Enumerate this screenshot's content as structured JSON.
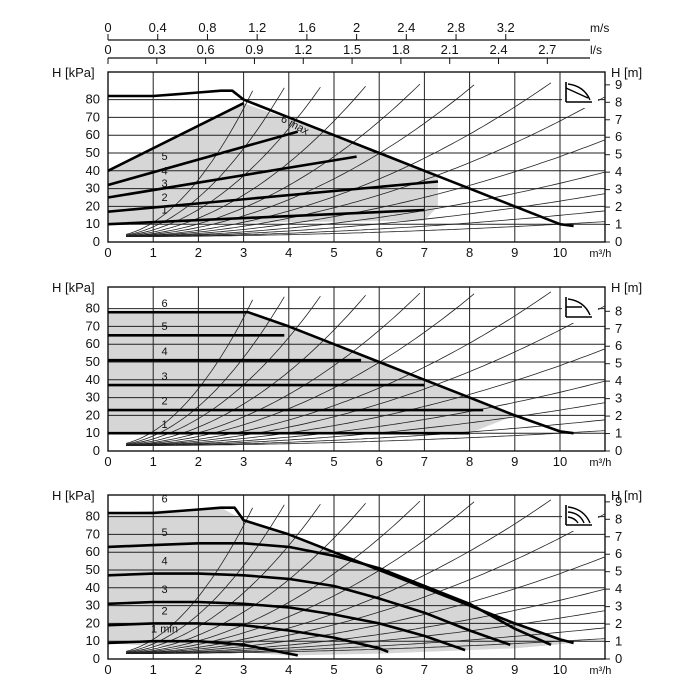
{
  "chart_data": [
    {
      "type": "line",
      "panel": "top",
      "control_icon": "proportional-pressure-icon",
      "xlabel": "m³/h",
      "ylabel_left": "H [kPa]",
      "ylabel_right": "H [m]",
      "xlim": [
        0,
        11
      ],
      "ylim": [
        0,
        90
      ],
      "x_ticks": [
        "0",
        "1",
        "2",
        "3",
        "4",
        "5",
        "6",
        "7",
        "8",
        "9",
        "10"
      ],
      "y_ticks_left": [
        "0",
        "10",
        "20",
        "30",
        "40",
        "50",
        "60",
        "70",
        "80"
      ],
      "y_ticks_right": [
        "0",
        "1",
        "2",
        "3",
        "4",
        "5",
        "6",
        "7",
        "8",
        "9"
      ],
      "grid": true,
      "shaded_operating_area": true,
      "secondary_axes": [
        {
          "unit": "m/s",
          "ticks": [
            "0",
            "0.4",
            "0.8",
            "1.2",
            "1.6",
            "2",
            "2.4",
            "2.8",
            "3.2"
          ],
          "x_at_tick": [
            0,
            1.1,
            2.2,
            3.3,
            4.4,
            5.5,
            6.6,
            7.7,
            8.8
          ]
        },
        {
          "unit": "l/s",
          "ticks": [
            "0",
            "0.3",
            "0.6",
            "0.9",
            "1.2",
            "1.5",
            "1.8",
            "2.1",
            "2.4",
            "2.7"
          ],
          "x_at_tick": [
            0,
            1.08,
            2.16,
            3.24,
            4.32,
            5.4,
            6.48,
            7.56,
            8.64,
            9.72
          ]
        }
      ],
      "series": [
        {
          "name": "6 max",
          "x": [
            0,
            1,
            1.5,
            2,
            2.5,
            2.75,
            3,
            3.5,
            4,
            5,
            6,
            7,
            8,
            9,
            10,
            10.3
          ],
          "y": [
            82,
            82,
            83,
            84,
            85,
            85,
            80,
            75,
            70,
            60,
            50,
            40,
            30,
            20,
            10,
            9
          ]
        },
        {
          "name": "5",
          "x": [
            0,
            3
          ],
          "y": [
            40,
            78
          ]
        },
        {
          "name": "4",
          "x": [
            0,
            4.2
          ],
          "y": [
            32,
            62
          ]
        },
        {
          "name": "3",
          "x": [
            0,
            5.5
          ],
          "y": [
            25,
            48
          ]
        },
        {
          "name": "2",
          "x": [
            0,
            7.3
          ],
          "y": [
            17,
            34
          ]
        },
        {
          "name": "1",
          "x": [
            0,
            7
          ],
          "y": [
            10,
            18
          ]
        }
      ]
    },
    {
      "type": "line",
      "panel": "middle",
      "control_icon": "constant-pressure-icon",
      "xlabel": "m³/h",
      "ylabel_left": "H [kPa]",
      "ylabel_right": "H [m]",
      "xlim": [
        0,
        11
      ],
      "ylim": [
        0,
        90
      ],
      "x_ticks": [
        "0",
        "1",
        "2",
        "3",
        "4",
        "5",
        "6",
        "7",
        "8",
        "9",
        "10"
      ],
      "y_ticks_left": [
        "0",
        "10",
        "20",
        "30",
        "40",
        "50",
        "60",
        "70",
        "80"
      ],
      "y_ticks_right": [
        "0",
        "1",
        "2",
        "3",
        "4",
        "5",
        "6",
        "7",
        "8"
      ],
      "grid": true,
      "shaded_operating_area": true,
      "series": [
        {
          "name": "6",
          "x": [
            0,
            3,
            3.1,
            4,
            5,
            6,
            7,
            8,
            9,
            10,
            10.3
          ],
          "y": [
            78,
            78,
            78,
            70,
            60,
            50,
            40,
            30,
            20,
            11,
            10
          ]
        },
        {
          "name": "5",
          "x": [
            0,
            3.9
          ],
          "y": [
            65,
            65
          ]
        },
        {
          "name": "4",
          "x": [
            0,
            5.6
          ],
          "y": [
            51,
            51
          ]
        },
        {
          "name": "3",
          "x": [
            0,
            7
          ],
          "y": [
            37,
            37
          ]
        },
        {
          "name": "2",
          "x": [
            0,
            8.3
          ],
          "y": [
            23,
            23
          ]
        },
        {
          "name": "1",
          "x": [
            0,
            8
          ],
          "y": [
            10,
            10
          ]
        }
      ]
    },
    {
      "type": "line",
      "panel": "bottom",
      "control_icon": "constant-speed-icon",
      "xlabel": "m³/h",
      "ylabel_left": "H [kPa]",
      "ylabel_right": "H [m]",
      "xlim": [
        0,
        11
      ],
      "ylim": [
        0,
        90
      ],
      "x_ticks": [
        "0",
        "1",
        "2",
        "3",
        "4",
        "5",
        "6",
        "7",
        "8",
        "9",
        "10"
      ],
      "y_ticks_left": [
        "0",
        "10",
        "20",
        "30",
        "40",
        "50",
        "60",
        "70",
        "80"
      ],
      "y_ticks_right": [
        "0",
        "1",
        "2",
        "3",
        "4",
        "5",
        "6",
        "7",
        "8",
        "9"
      ],
      "grid": true,
      "shaded_operating_area": true,
      "series": [
        {
          "name": "6",
          "x": [
            0,
            1,
            2,
            2.5,
            2.8,
            3,
            4,
            5,
            6,
            7,
            8,
            9,
            10,
            10.3
          ],
          "y": [
            82,
            82,
            84,
            85,
            85,
            78,
            70,
            60,
            50,
            40,
            30,
            20,
            11,
            9
          ]
        },
        {
          "name": "5",
          "x": [
            0,
            1,
            2,
            3,
            4,
            5,
            6,
            7,
            8,
            9,
            9.8
          ],
          "y": [
            63,
            64,
            65,
            65,
            63,
            58,
            51,
            41,
            31,
            17,
            8
          ]
        },
        {
          "name": "4",
          "x": [
            0,
            1,
            2,
            3,
            4,
            5,
            6,
            7,
            8,
            8.9
          ],
          "y": [
            47,
            48,
            48,
            47,
            45,
            41,
            34,
            26,
            16,
            8
          ]
        },
        {
          "name": "3",
          "x": [
            0,
            1,
            2,
            3,
            4,
            5,
            6,
            7,
            7.9
          ],
          "y": [
            31,
            32,
            32,
            31,
            29,
            25,
            20,
            13,
            5
          ]
        },
        {
          "name": "2",
          "x": [
            0,
            1,
            2,
            3,
            4,
            5,
            6,
            6.2
          ],
          "y": [
            19,
            20,
            20,
            19,
            16,
            12,
            6,
            4
          ]
        },
        {
          "name": "1 min",
          "x": [
            0,
            1,
            2,
            3,
            3.6,
            4.2
          ],
          "y": [
            9,
            10,
            10,
            8,
            5,
            2
          ]
        }
      ]
    }
  ]
}
